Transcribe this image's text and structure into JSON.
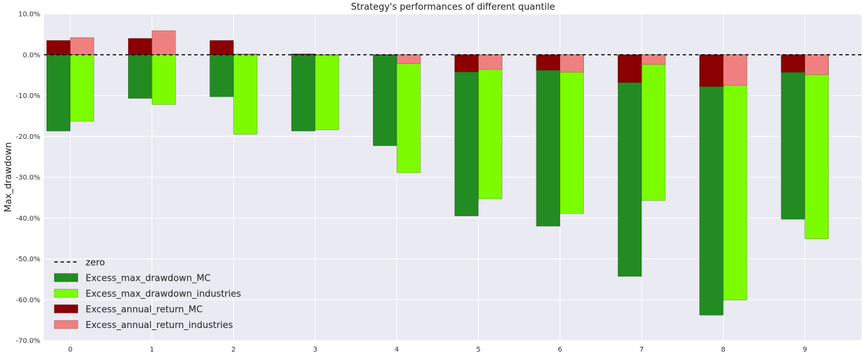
{
  "chart_data": {
    "type": "bar",
    "title": "Strategy's performances of different quantile",
    "xlabel": "",
    "ylabel": "Max_drawdown",
    "categories": [
      "0",
      "1",
      "2",
      "3",
      "4",
      "5",
      "6",
      "7",
      "8",
      "9"
    ],
    "ylim": [
      -70,
      10
    ],
    "yticks": [
      "10.0%",
      "0.0%",
      "-10.0%",
      "-20.0%",
      "-30.0%",
      "-40.0%",
      "-50.0%",
      "-60.0%",
      "-70.0%"
    ],
    "grid": true,
    "legend_position": "lower-left",
    "zero_line": {
      "name": "zero",
      "value": 0,
      "color": "#000000"
    },
    "series": [
      {
        "name": "Excess_max_drawdown_MC",
        "color": "#228b22",
        "values": [
          -18.7,
          -10.7,
          -10.3,
          -18.7,
          -22.3,
          -39.5,
          -42.0,
          -54.3,
          -63.8,
          -40.3
        ]
      },
      {
        "name": "Excess_max_drawdown_industries",
        "color": "#7cfc00",
        "values": [
          -16.3,
          -12.2,
          -19.5,
          -18.4,
          -28.9,
          -35.3,
          -38.9,
          -35.7,
          -60.1,
          -45.1
        ]
      },
      {
        "name": "Excess_annual_return_MC",
        "color": "#8b0000",
        "values": [
          3.5,
          4.0,
          3.5,
          0.2,
          0.0,
          -4.2,
          -3.8,
          -6.8,
          -7.8,
          -4.3
        ]
      },
      {
        "name": "Excess_annual_return_industries",
        "color": "#f08080",
        "values": [
          4.2,
          5.9,
          0.2,
          0.0,
          -2.2,
          -3.6,
          -4.3,
          -2.4,
          -7.5,
          -4.9
        ]
      }
    ]
  }
}
